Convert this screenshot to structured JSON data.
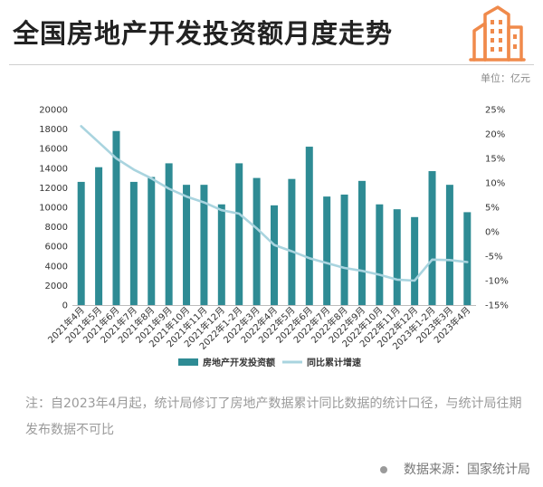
{
  "title": "全国房地产开发投资额月度走势",
  "unit": "单位：亿元",
  "note": "注：自2023年4月起，统计局修订了房地产数据累计同比数据的统计口径，与统计局往期发布数据不可比",
  "source": "数据来源：国家统计局",
  "colors": {
    "bar": "#2e8b94",
    "line": "#a9d4df",
    "logo": "#f08a4b"
  },
  "chart_data": {
    "type": "bar",
    "categories": [
      "2021年4月",
      "2021年5月",
      "2021年6月",
      "2021年7月",
      "2021年8月",
      "2021年9月",
      "2021年10月",
      "2021年11月",
      "2021年12月",
      "2022年1-2月",
      "2022年3月",
      "2022年4月",
      "2022年5月",
      "2022年6月",
      "2022年7月",
      "2022年8月",
      "2022年9月",
      "2022年10月",
      "2022年11月",
      "2022年12月",
      "2023年1-2月",
      "2023年3月",
      "2023年4月"
    ],
    "series": [
      {
        "name": "房地产开发投资额",
        "type": "bar",
        "axis": "left",
        "values": [
          12600,
          14100,
          17800,
          12600,
          13100,
          14500,
          12300,
          12300,
          10300,
          14500,
          13000,
          10200,
          12900,
          16200,
          11100,
          11300,
          12700,
          10300,
          9800,
          9000,
          13700,
          12300,
          9500
        ]
      },
      {
        "name": "同比累计增速",
        "type": "line",
        "axis": "right",
        "values": [
          21.6,
          18.3,
          15.0,
          12.7,
          10.9,
          8.8,
          7.2,
          6.0,
          4.4,
          3.7,
          0.7,
          -2.7,
          -4.0,
          -5.4,
          -6.4,
          -7.4,
          -8.0,
          -8.8,
          -9.8,
          -10.0,
          -5.7,
          -5.8,
          -6.2
        ]
      }
    ],
    "ylim_left": [
      0,
      20000
    ],
    "yticks_left": [
      "0",
      "2000",
      "4000",
      "6000",
      "8000",
      "10000",
      "12000",
      "14000",
      "16000",
      "18000",
      "20000"
    ],
    "ylim_right": [
      -15,
      25
    ],
    "yticks_right": [
      "-15%",
      "-10%",
      "-5%",
      "0%",
      "5%",
      "10%",
      "15%",
      "20%",
      "25%"
    ],
    "legend_position": "bottom-center",
    "grid": false
  }
}
